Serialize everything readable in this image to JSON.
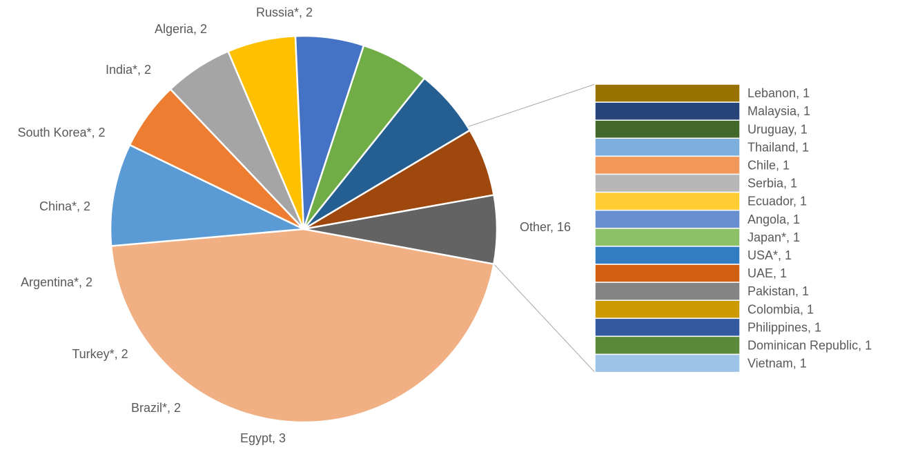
{
  "chart_data": {
    "type": "pie",
    "subtype": "pie-of-pie (bar of pie)",
    "main_slices": [
      {
        "label": "Other",
        "value": 16,
        "display": "Other, 16",
        "color": "#F0B083"
      },
      {
        "label": "Egypt",
        "value": 3,
        "display": "Egypt, 3",
        "color": "#5B9BD5"
      },
      {
        "label": "Brazil*",
        "value": 2,
        "display": "Brazil*, 2",
        "color": "#ED7D31"
      },
      {
        "label": "Turkey*",
        "value": 2,
        "display": "Turkey*, 2",
        "color": "#A5A5A5"
      },
      {
        "label": "Argentina*",
        "value": 2,
        "display": "Argentina*, 2",
        "color": "#FFC000"
      },
      {
        "label": "China*",
        "value": 2,
        "display": "China*, 2",
        "color": "#4472C4"
      },
      {
        "label": "South Korea*",
        "value": 2,
        "display": "South Korea*, 2",
        "color": "#70AD47"
      },
      {
        "label": "India*",
        "value": 2,
        "display": "India*, 2",
        "color": "#255E91"
      },
      {
        "label": "Algeria",
        "value": 2,
        "display": "Algeria, 2",
        "color": "#9E480E"
      },
      {
        "label": "Russia*",
        "value": 2,
        "display": "Russia*, 2",
        "color": "#636363"
      }
    ],
    "other_breakdown": [
      {
        "label": "Lebanon",
        "value": 1,
        "display": "Lebanon, 1",
        "color": "#997300"
      },
      {
        "label": "Malaysia",
        "value": 1,
        "display": "Malaysia, 1",
        "color": "#264478"
      },
      {
        "label": "Uruguay",
        "value": 1,
        "display": "Uruguay, 1",
        "color": "#43682B"
      },
      {
        "label": "Thailand",
        "value": 1,
        "display": "Thailand, 1",
        "color": "#7CAFDD"
      },
      {
        "label": "Chile",
        "value": 1,
        "display": "Chile, 1",
        "color": "#F1975A"
      },
      {
        "label": "Serbia",
        "value": 1,
        "display": "Serbia, 1",
        "color": "#B7B7B7"
      },
      {
        "label": "Ecuador",
        "value": 1,
        "display": "Ecuador, 1",
        "color": "#FFCD33"
      },
      {
        "label": "Angola",
        "value": 1,
        "display": "Angola, 1",
        "color": "#698ED0"
      },
      {
        "label": "Japan*",
        "value": 1,
        "display": "Japan*, 1",
        "color": "#8CC168"
      },
      {
        "label": "USA*",
        "value": 1,
        "display": "USA*, 1",
        "color": "#327DC2"
      },
      {
        "label": "UAE",
        "value": 1,
        "display": "UAE, 1",
        "color": "#D26012"
      },
      {
        "label": "Pakistan",
        "value": 1,
        "display": "Pakistan, 1",
        "color": "#848484"
      },
      {
        "label": "Colombia",
        "value": 1,
        "display": "Colombia, 1",
        "color": "#CC9A00"
      },
      {
        "label": "Philippines",
        "value": 1,
        "display": "Philippines, 1",
        "color": "#335AA1"
      },
      {
        "label": "Dominican Republic",
        "value": 1,
        "display": "Dominican Republic, 1",
        "color": "#5A8A39"
      },
      {
        "label": "Vietnam",
        "value": 1,
        "display": "Vietnam, 1",
        "color": "#9DC3E6"
      }
    ],
    "title": "",
    "legend": "none",
    "grid": false
  }
}
